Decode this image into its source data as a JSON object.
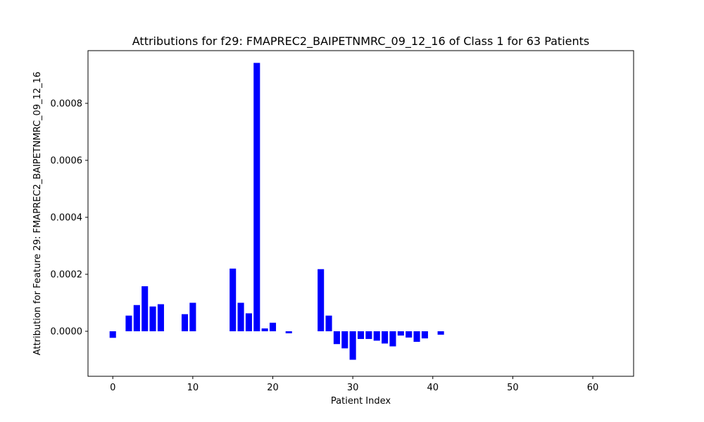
{
  "chart_data": {
    "type": "bar",
    "title": "Attributions for f29: FMAPREC2_BAIPETNMRC_09_12_16 of Class 1 for 63 Patients",
    "xlabel": "Patient Index",
    "ylabel": "Attribution for Feature 29: FMAPREC2_BAIPETNMRC_09_12_16",
    "bar_color": "#0000ff",
    "xlim": [
      -3.1,
      65.1
    ],
    "ylim": [
      -0.000158,
      0.000985
    ],
    "xticks": [
      0,
      10,
      20,
      30,
      40,
      50,
      60
    ],
    "xtick_labels": [
      "0",
      "10",
      "20",
      "30",
      "40",
      "50",
      "60"
    ],
    "yticks": [
      0.0,
      0.0002,
      0.0004,
      0.0006,
      0.0008
    ],
    "ytick_labels": [
      "0.0000",
      "0.0002",
      "0.0004",
      "0.0006",
      "0.0008"
    ],
    "grid": false,
    "x": [
      0,
      1,
      2,
      3,
      4,
      5,
      6,
      7,
      8,
      9,
      10,
      11,
      12,
      13,
      14,
      15,
      16,
      17,
      18,
      19,
      20,
      21,
      22,
      23,
      24,
      25,
      26,
      27,
      28,
      29,
      30,
      31,
      32,
      33,
      34,
      35,
      36,
      37,
      38,
      39,
      40,
      41,
      42,
      43,
      44,
      45,
      46,
      47,
      48,
      49,
      50,
      51,
      52,
      53,
      54,
      55,
      56,
      57,
      58,
      59,
      60,
      61,
      62
    ],
    "values": [
      -2.3e-05,
      0,
      5.5e-05,
      9.2e-05,
      0.000158,
      8.7e-05,
      9.5e-05,
      0,
      0,
      6e-05,
      0.0001,
      0,
      0,
      0,
      0,
      0.00022,
      0.0001,
      6.3e-05,
      0.000942,
      1e-05,
      3e-05,
      0,
      -7e-06,
      0,
      0,
      0,
      0.000218,
      5.5e-05,
      -4.5e-05,
      -6e-05,
      -0.0001,
      -2.7e-05,
      -2.7e-05,
      -3.3e-05,
      -4.3e-05,
      -5.3e-05,
      -1.5e-05,
      -2.2e-05,
      -3.7e-05,
      -2.5e-05,
      0,
      -1.2e-05,
      0,
      0,
      0,
      0,
      0,
      0,
      0,
      0,
      0,
      0,
      0,
      0,
      0,
      0,
      0,
      0,
      0,
      0,
      0,
      0,
      0
    ]
  }
}
